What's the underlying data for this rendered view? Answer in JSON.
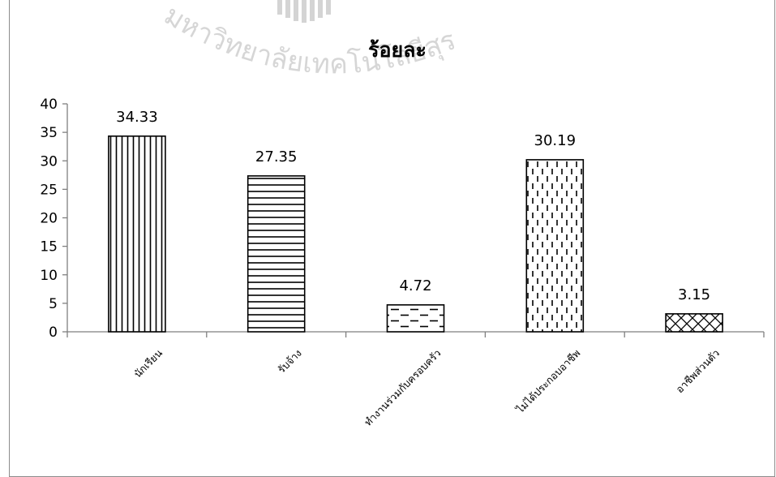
{
  "chart_data": {
    "type": "bar",
    "title": "ร้อยละ",
    "categories": [
      "นักเรียน",
      "รับจ้าง",
      "ทำงานร่วมกับครอบครัว",
      "ไม่ได้ประกอบอาชีพ",
      "อาชีพส่วนตัว"
    ],
    "values": [
      34.33,
      27.35,
      4.72,
      30.19,
      3.15
    ],
    "data_labels": [
      "34.33",
      "27.35",
      "4.72",
      "30.19",
      "3.15"
    ],
    "bar_patterns": [
      "vertical-lines",
      "horizontal-lines",
      "dashed-horizontal",
      "dashed-vertical",
      "crosshatch"
    ],
    "ylim": [
      0,
      40
    ],
    "yticks": [
      "0",
      "5",
      "10",
      "15",
      "20",
      "25",
      "30",
      "35",
      "40"
    ],
    "xlabel": "",
    "ylabel": "",
    "grid": false,
    "legend": "none"
  },
  "watermark": {
    "text": "มหาวิทยาลัยเทคโนโลยีสุรนารี",
    "emblem": "university-seal"
  }
}
